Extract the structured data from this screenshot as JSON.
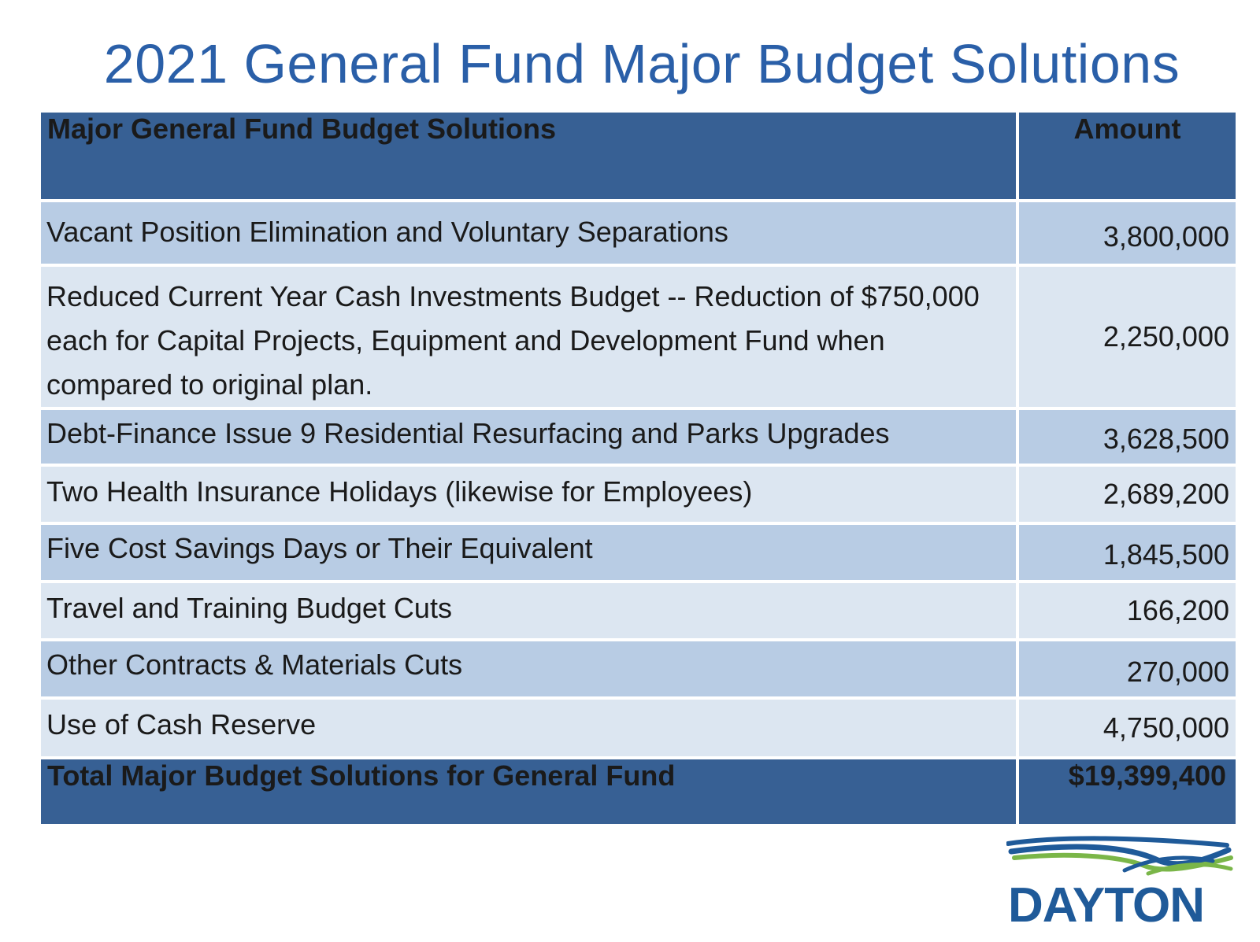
{
  "title": "2021 General Fund Major Budget Solutions",
  "table": {
    "header": {
      "description": "Major General Fund Budget Solutions",
      "amount": "Amount"
    },
    "rows": [
      {
        "description": "Vacant Position Elimination and Voluntary Separations",
        "amount": "3,800,000"
      },
      {
        "description": "Reduced Current Year Cash Investments Budget -- Reduction of $750,000 each for Capital Projects, Equipment and Development Fund when compared to original plan.",
        "amount": "2,250,000"
      },
      {
        "description": "Debt-Finance Issue 9 Residential Resurfacing and Parks Upgrades",
        "amount": "3,628,500"
      },
      {
        "description": "Two Health Insurance Holidays (likewise for Employees)",
        "amount": "2,689,200"
      },
      {
        "description": "Five Cost Savings Days or Their Equivalent",
        "amount": "1,845,500"
      },
      {
        "description": "Travel and Training Budget Cuts",
        "amount": "166,200"
      },
      {
        "description": "Other Contracts & Materials Cuts",
        "amount": "270,000"
      },
      {
        "description": "Use of Cash Reserve",
        "amount": "4,750,000"
      }
    ],
    "total": {
      "description": "Total Major Budget Solutions for General Fund",
      "amount": "$19,399,400"
    }
  },
  "logo": {
    "text": "DAYTON"
  },
  "colors": {
    "title": "#2a5fa8",
    "header_bg": "#376094",
    "row_dark": "#b8cce4",
    "row_light": "#dce6f1",
    "logo_blue": "#1f5a99",
    "logo_green": "#7ab648"
  }
}
